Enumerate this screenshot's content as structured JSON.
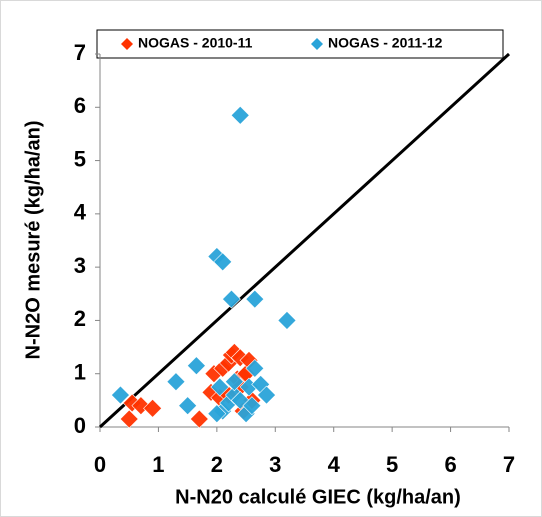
{
  "chart_data": {
    "type": "scatter",
    "xlabel": "N-N20 calculé GIEC (kg/ha/an)",
    "ylabel": "N-N2O mesuré (kg/ha/an)",
    "xlim": [
      0,
      7
    ],
    "ylim": [
      0,
      7
    ],
    "xticks": [
      0,
      1,
      2,
      3,
      4,
      5,
      6,
      7
    ],
    "yticks": [
      0,
      1,
      2,
      3,
      4,
      5,
      6,
      7
    ],
    "legend": "top",
    "series": [
      {
        "name": "NOGAS - 2010-11",
        "color": "#ff3300",
        "x": [
          0.5,
          0.55,
          0.7,
          0.9,
          1.7,
          1.9,
          1.95,
          2.05,
          2.1,
          2.2,
          2.25,
          2.3,
          2.35,
          2.4,
          2.45,
          2.5,
          2.55,
          2.6,
          2.45,
          2.2,
          2.4
        ],
        "values": [
          0.15,
          0.45,
          0.4,
          0.35,
          0.15,
          0.65,
          1.0,
          0.55,
          1.1,
          1.2,
          1.35,
          1.4,
          0.9,
          1.3,
          0.95,
          1.0,
          1.25,
          0.5,
          0.3,
          0.6,
          0.75
        ]
      },
      {
        "name": "NOGAS - 2011-12",
        "color": "#29a3d9",
        "x": [
          0.35,
          1.3,
          1.5,
          1.65,
          2.0,
          2.1,
          2.25,
          2.65,
          3.2,
          2.4,
          2.05,
          2.1,
          2.0,
          2.2,
          2.3,
          2.4,
          2.5,
          2.55,
          2.65,
          2.75,
          2.85,
          2.3,
          2.6
        ],
        "values": [
          0.6,
          0.85,
          0.4,
          1.15,
          3.2,
          3.1,
          2.4,
          2.4,
          2.0,
          5.85,
          0.75,
          0.3,
          0.25,
          0.45,
          0.6,
          0.5,
          0.25,
          0.75,
          1.1,
          0.8,
          0.6,
          0.85,
          0.4
        ]
      }
    ],
    "reference_line": {
      "x": [
        0,
        7
      ],
      "y": [
        0,
        7
      ],
      "color": "#000000"
    }
  }
}
